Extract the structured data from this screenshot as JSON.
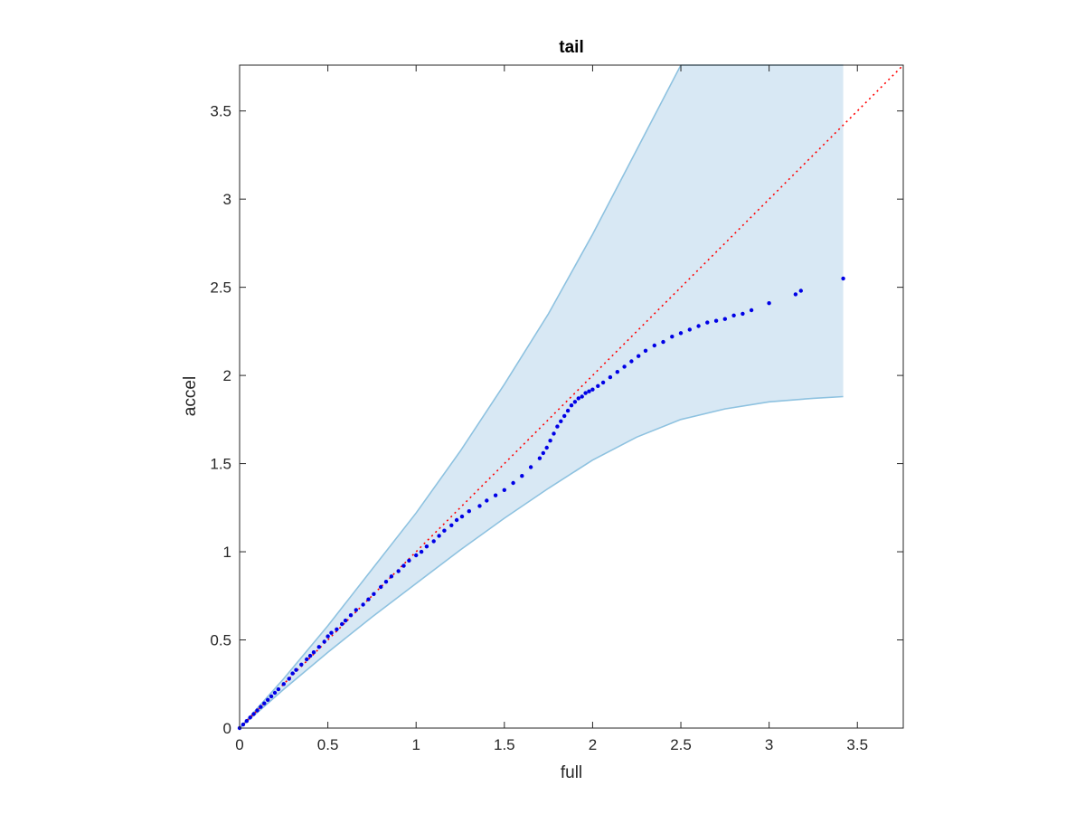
{
  "chart_data": {
    "type": "scatter",
    "title": "tail",
    "xlabel": "full",
    "ylabel": "accel",
    "xlim": [
      0,
      3.76
    ],
    "ylim": [
      0,
      3.76
    ],
    "xticks": [
      0,
      0.5,
      1,
      1.5,
      2,
      2.5,
      3,
      3.5
    ],
    "yticks": [
      0,
      0.5,
      1,
      1.5,
      2,
      2.5,
      3,
      3.5
    ],
    "xtick_labels": [
      "0",
      "0.5",
      "1",
      "1.5",
      "2",
      "2.5",
      "3",
      "3.5"
    ],
    "ytick_labels": [
      "0",
      "0.5",
      "1",
      "1.5",
      "2",
      "2.5",
      "3",
      "3.5"
    ],
    "grid": false,
    "box": true,
    "colors": {
      "points": "#0000e6",
      "reference_line": "#ff0000",
      "band_fill": "#d8e8f4",
      "band_edge": "#8ec2e0",
      "axes": "#262626"
    },
    "confidence_band": {
      "x": [
        0,
        0.25,
        0.5,
        0.75,
        1.0,
        1.25,
        1.5,
        1.75,
        2.0,
        2.25,
        2.5,
        2.75,
        3.0,
        3.25,
        3.42
      ],
      "upper": [
        0,
        0.28,
        0.58,
        0.9,
        1.22,
        1.57,
        1.95,
        2.35,
        2.8,
        3.28,
        3.76,
        3.76,
        3.76,
        3.76,
        3.76
      ],
      "lower": [
        0,
        0.22,
        0.43,
        0.63,
        0.82,
        1.01,
        1.19,
        1.36,
        1.52,
        1.65,
        1.75,
        1.81,
        1.85,
        1.87,
        1.88
      ]
    },
    "reference_line": {
      "x": [
        0,
        3.76
      ],
      "y": [
        0,
        3.76
      ],
      "style": "dotted"
    },
    "series": [
      {
        "x": [
          0.0,
          0.02,
          0.04,
          0.06,
          0.08,
          0.1,
          0.12,
          0.14,
          0.16,
          0.18,
          0.2,
          0.22,
          0.25,
          0.28,
          0.3,
          0.32,
          0.35,
          0.38,
          0.4,
          0.42,
          0.45,
          0.48,
          0.5,
          0.52,
          0.55,
          0.58,
          0.6,
          0.63,
          0.66,
          0.7,
          0.73,
          0.76,
          0.8,
          0.83,
          0.86,
          0.9,
          0.93,
          0.96,
          1.0,
          1.03,
          1.06,
          1.1,
          1.13,
          1.16,
          1.2,
          1.23,
          1.26,
          1.3,
          1.36,
          1.4,
          1.45,
          1.5,
          1.55,
          1.6,
          1.65,
          1.7,
          1.72,
          1.74,
          1.76,
          1.78,
          1.8,
          1.82,
          1.84,
          1.86,
          1.88,
          1.9,
          1.92,
          1.94,
          1.96,
          1.98,
          2.0,
          2.03,
          2.06,
          2.1,
          2.14,
          2.18,
          2.22,
          2.26,
          2.3,
          2.35,
          2.4,
          2.45,
          2.5,
          2.55,
          2.6,
          2.65,
          2.7,
          2.75,
          2.8,
          2.85,
          2.9,
          3.0,
          3.15,
          3.18,
          3.42
        ],
        "y": [
          0.0,
          0.02,
          0.04,
          0.06,
          0.08,
          0.1,
          0.12,
          0.14,
          0.16,
          0.18,
          0.2,
          0.22,
          0.25,
          0.28,
          0.31,
          0.33,
          0.36,
          0.39,
          0.41,
          0.43,
          0.46,
          0.49,
          0.52,
          0.54,
          0.56,
          0.59,
          0.61,
          0.64,
          0.67,
          0.7,
          0.73,
          0.76,
          0.8,
          0.83,
          0.86,
          0.89,
          0.92,
          0.95,
          0.98,
          1.0,
          1.03,
          1.06,
          1.09,
          1.12,
          1.15,
          1.18,
          1.2,
          1.23,
          1.26,
          1.29,
          1.32,
          1.35,
          1.39,
          1.43,
          1.48,
          1.53,
          1.56,
          1.59,
          1.63,
          1.67,
          1.71,
          1.74,
          1.77,
          1.8,
          1.83,
          1.85,
          1.87,
          1.88,
          1.9,
          1.91,
          1.92,
          1.94,
          1.96,
          1.99,
          2.02,
          2.05,
          2.08,
          2.11,
          2.14,
          2.17,
          2.19,
          2.22,
          2.24,
          2.26,
          2.28,
          2.3,
          2.31,
          2.32,
          2.34,
          2.35,
          2.37,
          2.41,
          2.46,
          2.48,
          2.55
        ]
      }
    ]
  }
}
